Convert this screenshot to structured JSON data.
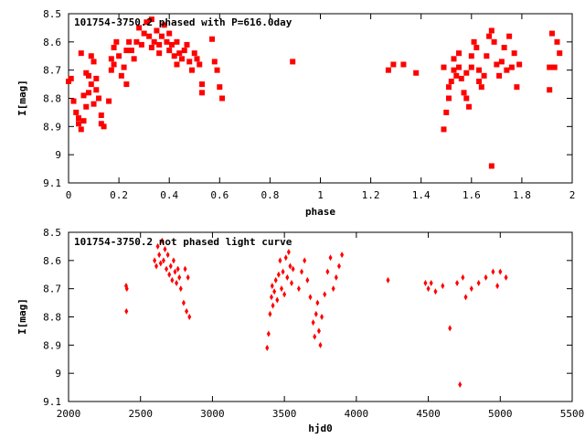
{
  "chart_data": [
    {
      "type": "scatter",
      "title": "101754-3750.2 phased with P=616.0day",
      "xlabel": "phase",
      "ylabel": "I[mag]",
      "xlim": [
        0,
        2
      ],
      "ylim": [
        8.5,
        9.1
      ],
      "y_inverted": true,
      "x_ticks": [
        "0",
        "0.2",
        "0.4",
        "0.6",
        "0.8",
        "1",
        "1.2",
        "1.4",
        "1.6",
        "1.8",
        "2"
      ],
      "y_ticks": [
        "8.5",
        "8.6",
        "8.7",
        "8.8",
        "8.9",
        "9",
        "9.1"
      ],
      "marker_color": "#ff0000",
      "grid": false,
      "points": [
        [
          0.0,
          8.74
        ],
        [
          0.01,
          8.73
        ],
        [
          0.02,
          8.81
        ],
        [
          0.03,
          8.85
        ],
        [
          0.04,
          8.87
        ],
        [
          0.04,
          8.89
        ],
        [
          0.05,
          8.64
        ],
        [
          0.05,
          8.91
        ],
        [
          0.06,
          8.88
        ],
        [
          0.06,
          8.79
        ],
        [
          0.07,
          8.71
        ],
        [
          0.07,
          8.83
        ],
        [
          0.08,
          8.78
        ],
        [
          0.08,
          8.72
        ],
        [
          0.09,
          8.75
        ],
        [
          0.09,
          8.65
        ],
        [
          0.1,
          8.67
        ],
        [
          0.1,
          8.82
        ],
        [
          0.11,
          8.77
        ],
        [
          0.11,
          8.73
        ],
        [
          0.12,
          8.8
        ],
        [
          0.13,
          8.86
        ],
        [
          0.13,
          8.89
        ],
        [
          0.14,
          8.9
        ],
        [
          0.16,
          8.81
        ],
        [
          0.17,
          8.66
        ],
        [
          0.17,
          8.7
        ],
        [
          0.18,
          8.62
        ],
        [
          0.18,
          8.68
        ],
        [
          0.19,
          8.6
        ],
        [
          0.2,
          8.65
        ],
        [
          0.21,
          8.72
        ],
        [
          0.22,
          8.69
        ],
        [
          0.23,
          8.63
        ],
        [
          0.23,
          8.75
        ],
        [
          0.24,
          8.6
        ],
        [
          0.25,
          8.63
        ],
        [
          0.26,
          8.66
        ],
        [
          0.27,
          8.6
        ],
        [
          0.28,
          8.55
        ],
        [
          0.29,
          8.61
        ],
        [
          0.3,
          8.57
        ],
        [
          0.31,
          8.53
        ],
        [
          0.32,
          8.58
        ],
        [
          0.33,
          8.62
        ],
        [
          0.33,
          8.52
        ],
        [
          0.34,
          8.6
        ],
        [
          0.35,
          8.56
        ],
        [
          0.36,
          8.61
        ],
        [
          0.36,
          8.64
        ],
        [
          0.37,
          8.58
        ],
        [
          0.38,
          8.54
        ],
        [
          0.39,
          8.6
        ],
        [
          0.4,
          8.57
        ],
        [
          0.4,
          8.63
        ],
        [
          0.41,
          8.61
        ],
        [
          0.42,
          8.65
        ],
        [
          0.43,
          8.68
        ],
        [
          0.43,
          8.6
        ],
        [
          0.44,
          8.64
        ],
        [
          0.45,
          8.66
        ],
        [
          0.46,
          8.63
        ],
        [
          0.47,
          8.61
        ],
        [
          0.48,
          8.67
        ],
        [
          0.49,
          8.7
        ],
        [
          0.5,
          8.64
        ],
        [
          0.51,
          8.66
        ],
        [
          0.52,
          8.68
        ],
        [
          0.53,
          8.75
        ],
        [
          0.53,
          8.78
        ],
        [
          0.57,
          8.59
        ],
        [
          0.58,
          8.67
        ],
        [
          0.59,
          8.7
        ],
        [
          0.6,
          8.76
        ],
        [
          0.61,
          8.8
        ],
        [
          0.89,
          8.67
        ],
        [
          1.27,
          8.7
        ],
        [
          1.29,
          8.68
        ],
        [
          1.33,
          8.68
        ],
        [
          1.38,
          8.71
        ],
        [
          1.49,
          8.91
        ],
        [
          1.49,
          8.69
        ],
        [
          1.5,
          8.85
        ],
        [
          1.51,
          8.8
        ],
        [
          1.51,
          8.76
        ],
        [
          1.52,
          8.74
        ],
        [
          1.53,
          8.7
        ],
        [
          1.53,
          8.66
        ],
        [
          1.54,
          8.72
        ],
        [
          1.55,
          8.64
        ],
        [
          1.55,
          8.69
        ],
        [
          1.56,
          8.73
        ],
        [
          1.57,
          8.78
        ],
        [
          1.58,
          8.71
        ],
        [
          1.58,
          8.8
        ],
        [
          1.59,
          8.83
        ],
        [
          1.6,
          8.69
        ],
        [
          1.6,
          8.65
        ],
        [
          1.61,
          8.6
        ],
        [
          1.62,
          8.62
        ],
        [
          1.63,
          8.7
        ],
        [
          1.63,
          8.74
        ],
        [
          1.64,
          8.76
        ],
        [
          1.65,
          8.72
        ],
        [
          1.66,
          8.65
        ],
        [
          1.67,
          8.58
        ],
        [
          1.68,
          8.56
        ],
        [
          1.68,
          9.04
        ],
        [
          1.69,
          8.6
        ],
        [
          1.7,
          8.68
        ],
        [
          1.71,
          8.72
        ],
        [
          1.72,
          8.67
        ],
        [
          1.73,
          8.62
        ],
        [
          1.74,
          8.7
        ],
        [
          1.75,
          8.58
        ],
        [
          1.76,
          8.69
        ],
        [
          1.77,
          8.64
        ],
        [
          1.78,
          8.76
        ],
        [
          1.79,
          8.68
        ],
        [
          1.91,
          8.69
        ],
        [
          1.91,
          8.77
        ],
        [
          1.92,
          8.57
        ],
        [
          1.93,
          8.69
        ],
        [
          1.94,
          8.6
        ],
        [
          1.95,
          8.64
        ]
      ]
    },
    {
      "type": "scatter",
      "title": "101754-3750.2 not phased light curve",
      "xlabel": "hjd0",
      "ylabel": "I[mag]",
      "xlim": [
        2000,
        5500
      ],
      "ylim": [
        8.5,
        9.1
      ],
      "y_inverted": true,
      "x_ticks": [
        "2000",
        "2500",
        "3000",
        "3500",
        "4000",
        "4500",
        "5000",
        "5500"
      ],
      "y_ticks": [
        "8.5",
        "8.6",
        "8.7",
        "8.8",
        "8.9",
        "9",
        "9.1"
      ],
      "marker_color": "#ff0000",
      "grid": false,
      "points": [
        [
          2400,
          8.69
        ],
        [
          2402,
          8.78
        ],
        [
          2405,
          8.7
        ],
        [
          2598,
          8.6
        ],
        [
          2610,
          8.62
        ],
        [
          2620,
          8.55
        ],
        [
          2630,
          8.58
        ],
        [
          2640,
          8.61
        ],
        [
          2650,
          8.53
        ],
        [
          2660,
          8.6
        ],
        [
          2670,
          8.56
        ],
        [
          2680,
          8.63
        ],
        [
          2690,
          8.58
        ],
        [
          2700,
          8.65
        ],
        [
          2710,
          8.62
        ],
        [
          2720,
          8.67
        ],
        [
          2730,
          8.6
        ],
        [
          2740,
          8.64
        ],
        [
          2750,
          8.68
        ],
        [
          2760,
          8.63
        ],
        [
          2770,
          8.66
        ],
        [
          2780,
          8.7
        ],
        [
          2800,
          8.75
        ],
        [
          2810,
          8.63
        ],
        [
          2820,
          8.78
        ],
        [
          2830,
          8.66
        ],
        [
          2840,
          8.8
        ],
        [
          3380,
          8.91
        ],
        [
          3390,
          8.86
        ],
        [
          3400,
          8.79
        ],
        [
          3410,
          8.73
        ],
        [
          3415,
          8.69
        ],
        [
          3420,
          8.76
        ],
        [
          3430,
          8.71
        ],
        [
          3440,
          8.67
        ],
        [
          3450,
          8.74
        ],
        [
          3460,
          8.65
        ],
        [
          3470,
          8.6
        ],
        [
          3480,
          8.7
        ],
        [
          3490,
          8.64
        ],
        [
          3500,
          8.72
        ],
        [
          3510,
          8.59
        ],
        [
          3520,
          8.66
        ],
        [
          3530,
          8.57
        ],
        [
          3540,
          8.62
        ],
        [
          3550,
          8.68
        ],
        [
          3560,
          8.63
        ],
        [
          3600,
          8.7
        ],
        [
          3620,
          8.64
        ],
        [
          3640,
          8.6
        ],
        [
          3660,
          8.67
        ],
        [
          3680,
          8.73
        ],
        [
          3700,
          8.82
        ],
        [
          3710,
          8.87
        ],
        [
          3720,
          8.79
        ],
        [
          3730,
          8.75
        ],
        [
          3740,
          8.85
        ],
        [
          3750,
          8.9
        ],
        [
          3760,
          8.8
        ],
        [
          3780,
          8.72
        ],
        [
          3800,
          8.64
        ],
        [
          3820,
          8.59
        ],
        [
          3840,
          8.7
        ],
        [
          3860,
          8.66
        ],
        [
          3880,
          8.62
        ],
        [
          3900,
          8.58
        ],
        [
          4220,
          8.67
        ],
        [
          4480,
          8.68
        ],
        [
          4500,
          8.7
        ],
        [
          4520,
          8.68
        ],
        [
          4550,
          8.71
        ],
        [
          4600,
          8.69
        ],
        [
          4650,
          8.84
        ],
        [
          4700,
          8.68
        ],
        [
          4720,
          9.04
        ],
        [
          4740,
          8.66
        ],
        [
          4760,
          8.73
        ],
        [
          4800,
          8.7
        ],
        [
          4850,
          8.68
        ],
        [
          4900,
          8.66
        ],
        [
          4950,
          8.64
        ],
        [
          4980,
          8.69
        ],
        [
          5000,
          8.64
        ],
        [
          5040,
          8.66
        ]
      ]
    }
  ]
}
